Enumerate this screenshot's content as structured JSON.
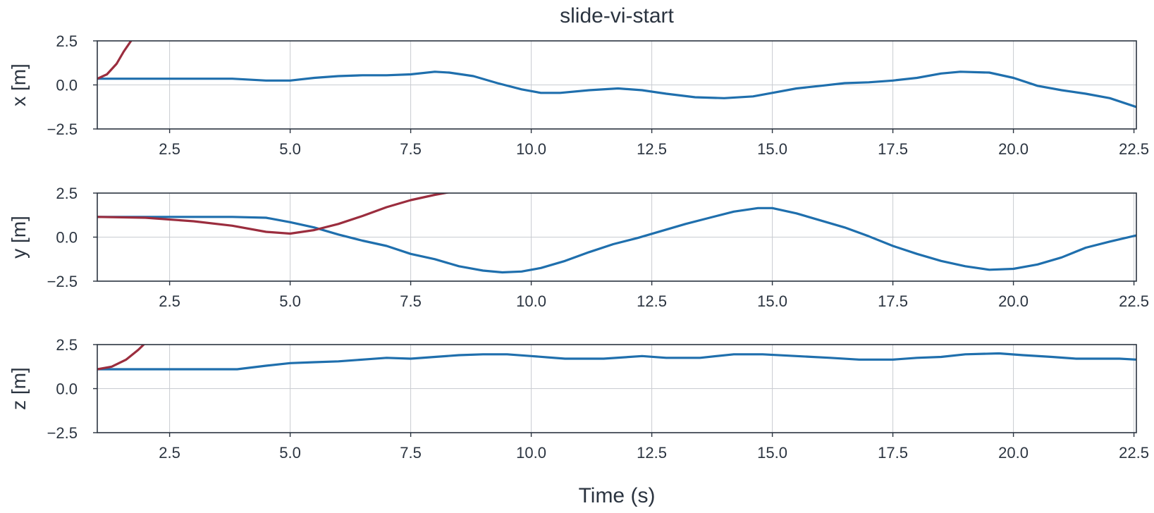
{
  "chart_data": {
    "type": "line",
    "title": "slide-vi-start",
    "xlabel": "Time (s)",
    "xlim": [
      1.0,
      22.55
    ],
    "xticks": [
      "2.5",
      "5.0",
      "7.5",
      "10.0",
      "12.5",
      "15.0",
      "17.5",
      "20.0",
      "22.5"
    ],
    "grid": true,
    "colors": {
      "reference": "#1f6fad",
      "estimate": "#9b2d3e"
    },
    "subplots": [
      {
        "ylabel": "x [m]",
        "ylim": [
          -2.5,
          2.5
        ],
        "yticks": [
          "2.5",
          "0.0",
          "−2.5"
        ],
        "series": [
          {
            "x": [
              1.0,
              2.0,
              3.0,
              3.8,
              4.5,
              5.0,
              5.5,
              6.0,
              6.5,
              7.0,
              7.5,
              8.0,
              8.3,
              8.8,
              9.3,
              9.8,
              10.2,
              10.6,
              11.2,
              11.8,
              12.3,
              12.8,
              13.4,
              14.0,
              14.6,
              15.0,
              15.5,
              16.0,
              16.5,
              17.0,
              17.5,
              18.0,
              18.5,
              18.9,
              19.5,
              20.0,
              20.5,
              21.0,
              21.5,
              22.0,
              22.55
            ],
            "y": [
              0.35,
              0.35,
              0.35,
              0.35,
              0.25,
              0.25,
              0.4,
              0.5,
              0.55,
              0.55,
              0.6,
              0.75,
              0.7,
              0.5,
              0.1,
              -0.25,
              -0.45,
              -0.45,
              -0.3,
              -0.2,
              -0.3,
              -0.5,
              -0.7,
              -0.75,
              -0.65,
              -0.45,
              -0.2,
              -0.05,
              0.1,
              0.15,
              0.25,
              0.4,
              0.65,
              0.75,
              0.7,
              0.4,
              -0.05,
              -0.3,
              -0.5,
              -0.75,
              -1.25
            ]
          },
          {
            "x": [
              1.0,
              1.2,
              1.4,
              1.55,
              1.7,
              1.8
            ],
            "y": [
              0.35,
              0.6,
              1.2,
              1.9,
              2.5,
              3.0
            ]
          }
        ]
      },
      {
        "ylabel": "y [m]",
        "ylim": [
          -2.5,
          2.5
        ],
        "yticks": [
          "2.5",
          "0.0",
          "−2.5"
        ],
        "series": [
          {
            "x": [
              1.0,
              2.0,
              3.0,
              3.8,
              4.5,
              5.0,
              5.5,
              6.0,
              6.5,
              7.0,
              7.5,
              8.0,
              8.5,
              9.0,
              9.4,
              9.8,
              10.2,
              10.7,
              11.2,
              11.7,
              12.2,
              12.7,
              13.2,
              13.7,
              14.2,
              14.7,
              15.0,
              15.5,
              16.0,
              16.5,
              17.0,
              17.5,
              18.0,
              18.5,
              19.0,
              19.5,
              20.0,
              20.5,
              21.0,
              21.5,
              22.0,
              22.55
            ],
            "y": [
              1.15,
              1.15,
              1.15,
              1.15,
              1.1,
              0.85,
              0.55,
              0.15,
              -0.2,
              -0.5,
              -0.95,
              -1.25,
              -1.65,
              -1.9,
              -2.0,
              -1.95,
              -1.75,
              -1.35,
              -0.85,
              -0.4,
              -0.05,
              0.35,
              0.75,
              1.1,
              1.45,
              1.65,
              1.65,
              1.35,
              0.95,
              0.55,
              0.05,
              -0.5,
              -0.95,
              -1.35,
              -1.65,
              -1.85,
              -1.8,
              -1.55,
              -1.15,
              -0.6,
              -0.25,
              0.1
            ]
          },
          {
            "x": [
              1.0,
              2.0,
              3.0,
              3.8,
              4.5,
              5.0,
              5.5,
              6.0,
              6.5,
              7.0,
              7.5,
              8.0,
              8.3
            ],
            "y": [
              1.15,
              1.1,
              0.9,
              0.65,
              0.3,
              0.2,
              0.4,
              0.75,
              1.2,
              1.7,
              2.1,
              2.4,
              2.55
            ]
          }
        ]
      },
      {
        "ylabel": "z [m]",
        "ylim": [
          -2.5,
          2.5
        ],
        "yticks": [
          "2.5",
          "0.0",
          "−2.5"
        ],
        "series": [
          {
            "x": [
              1.0,
              2.0,
              3.0,
              3.9,
              4.5,
              5.0,
              5.5,
              6.0,
              6.5,
              7.0,
              7.5,
              8.0,
              8.5,
              9.0,
              9.5,
              10.0,
              10.7,
              11.5,
              12.3,
              12.8,
              13.5,
              14.2,
              14.8,
              15.5,
              16.2,
              16.8,
              17.5,
              18.0,
              18.5,
              19.0,
              19.7,
              20.2,
              20.8,
              21.3,
              21.8,
              22.2,
              22.55
            ],
            "y": [
              1.1,
              1.1,
              1.1,
              1.1,
              1.3,
              1.45,
              1.5,
              1.55,
              1.65,
              1.75,
              1.7,
              1.8,
              1.9,
              1.95,
              1.95,
              1.85,
              1.7,
              1.7,
              1.85,
              1.75,
              1.75,
              1.95,
              1.95,
              1.85,
              1.75,
              1.65,
              1.65,
              1.75,
              1.8,
              1.95,
              2.0,
              1.9,
              1.8,
              1.7,
              1.7,
              1.7,
              1.65
            ]
          },
          {
            "x": [
              1.0,
              1.3,
              1.6,
              1.85,
              2.0
            ],
            "y": [
              1.1,
              1.25,
              1.65,
              2.2,
              2.6
            ]
          }
        ]
      }
    ]
  }
}
